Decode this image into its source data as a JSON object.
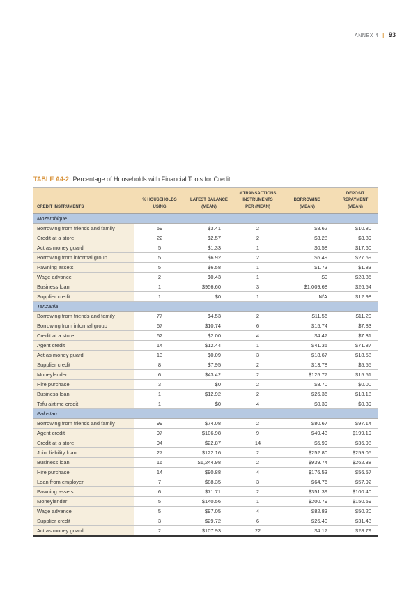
{
  "page_header": {
    "annex": "ANNEX 4",
    "separator": "|",
    "page_number": "93"
  },
  "title": {
    "label": "TABLE A4-2:",
    "text": "Percentage of Households with Financial Tools for Credit"
  },
  "colors": {
    "accent_gold": "#d9953f",
    "header_bg": "#f4ddb4",
    "section_bg": "#b6c9e2",
    "first_col_bg": "#f6eedd",
    "section_border": "#3f4957"
  },
  "table": {
    "columns": [
      "CREDIT INSTRUMENTS",
      "% HOUSEHOLDS\nUSING",
      "LATEST BALANCE\n(MEAN)",
      "# TRANSACTIONS\nINSTRUMENTS\nPER (MEAN)",
      "BORROWING\n(MEAN)",
      "DEPOSIT\nREPAYMENT\n(MEAN)"
    ],
    "sections": [
      {
        "name": "Mozambique",
        "rows": [
          [
            "Borrowing from friends and family",
            "59",
            "$3.41",
            "2",
            "$8.62",
            "$10.80"
          ],
          [
            "Credit at a store",
            "22",
            "$2.57",
            "2",
            "$3.28",
            "$3.89"
          ],
          [
            "Act as money guard",
            "5",
            "$1.33",
            "1",
            "$0.58",
            "$17.60"
          ],
          [
            "Borrowing from informal group",
            "5",
            "$6.92",
            "2",
            "$6.49",
            "$27.69"
          ],
          [
            "Pawning assets",
            "5",
            "$6.58",
            "1",
            "$1.73",
            "$1.83"
          ],
          [
            "Wage advance",
            "2",
            "$0.43",
            "1",
            "$0",
            "$28.85"
          ],
          [
            "Business loan",
            "1",
            "$956.60",
            "3",
            "$1,009.68",
            "$26.54"
          ],
          [
            "Supplier credit",
            "1",
            "$0",
            "1",
            "N/A",
            "$12.98"
          ]
        ]
      },
      {
        "name": "Tanzania",
        "rows": [
          [
            "Borrowing from friends and family",
            "77",
            "$4.53",
            "2",
            "$11.56",
            "$11.20"
          ],
          [
            "Borrowing from informal group",
            "67",
            "$10.74",
            "6",
            "$15.74",
            "$7.83"
          ],
          [
            "Credit at a store",
            "62",
            "$2.00",
            "4",
            "$4.47",
            "$7.31"
          ],
          [
            "Agent credit",
            "14",
            "$12.44",
            "1",
            "$41.35",
            "$71.87"
          ],
          [
            "Act as money guard",
            "13",
            "$0.09",
            "3",
            "$18.67",
            "$18.58"
          ],
          [
            "Supplier credit",
            "8",
            "$7.95",
            "2",
            "$13.78",
            "$5.55"
          ],
          [
            "Moneylender",
            "6",
            "$43.42",
            "2",
            "$125.77",
            "$15.51"
          ],
          [
            "Hire purchase",
            "3",
            "$0",
            "2",
            "$8.70",
            "$0.00"
          ],
          [
            "Business loan",
            "1",
            "$12.92",
            "2",
            "$26.36",
            "$13.18"
          ],
          [
            "Tafu airtime credit",
            "1",
            "$0",
            "4",
            "$0.39",
            "$0.39"
          ]
        ]
      },
      {
        "name": "Pakistan",
        "rows": [
          [
            "Borrowing from friends and family",
            "99",
            "$74.08",
            "2",
            "$80.67",
            "$97.14"
          ],
          [
            "Agent credit",
            "97",
            "$106.98",
            "9",
            "$49.43",
            "$199.19"
          ],
          [
            "Credit at a store",
            "94",
            "$22.87",
            "14",
            "$5.99",
            "$36.98"
          ],
          [
            "Joint liability loan",
            "27",
            "$122.16",
            "2",
            "$252.80",
            "$259.05"
          ],
          [
            "Business loan",
            "16",
            "$1,244.98",
            "2",
            "$939.74",
            "$262.38"
          ],
          [
            "Hire purchase",
            "14",
            "$90.88",
            "4",
            "$176.53",
            "$56.57"
          ],
          [
            "Loan from employer",
            "7",
            "$88.35",
            "3",
            "$64.76",
            "$57.92"
          ],
          [
            "Pawning assets",
            "6",
            "$71.71",
            "2",
            "$351.39",
            "$100.40"
          ],
          [
            "Moneylender",
            "5",
            "$140.56",
            "1",
            "$200.79",
            "$150.59"
          ],
          [
            "Wage advance",
            "5",
            "$97.05",
            "4",
            "$82.83",
            "$50.20"
          ],
          [
            "Supplier credit",
            "3",
            "$29.72",
            "6",
            "$26.40",
            "$31.43"
          ],
          [
            "Act as money guard",
            "2",
            "$107.93",
            "22",
            "$4.17",
            "$28.79"
          ]
        ]
      }
    ]
  }
}
